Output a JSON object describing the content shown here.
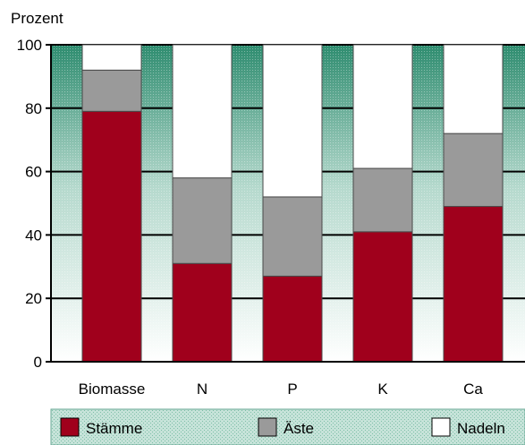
{
  "chart_data": {
    "type": "bar",
    "stacked": true,
    "ylabel": "Prozent",
    "ylim": [
      0,
      100
    ],
    "yticks": [
      "0",
      "20",
      "40",
      "60",
      "80",
      "100"
    ],
    "categories": [
      "Biomasse",
      "N",
      "P",
      "K",
      "Ca"
    ],
    "series": [
      {
        "name": "Stämme",
        "values": [
          79,
          31,
          27,
          41,
          49
        ],
        "color": "#a0001c"
      },
      {
        "name": "Äste",
        "values": [
          13,
          27,
          25,
          20,
          23
        ],
        "color": "#9a9a9a"
      },
      {
        "name": "Nadeln",
        "values": [
          8,
          42,
          48,
          39,
          28
        ],
        "color": "#ffffff"
      }
    ],
    "grid": true,
    "legend_position": "bottom",
    "background_gradient": [
      "#2e8c6f",
      "#ffffff"
    ]
  }
}
